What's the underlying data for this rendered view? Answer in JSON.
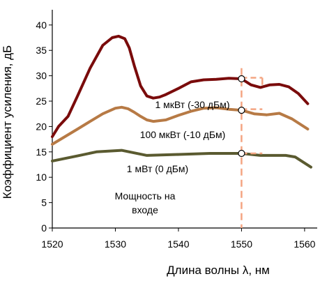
{
  "chart_data": {
    "type": "line",
    "xlabel": "Длина волны λ, нм",
    "ylabel": "Коэффициент усиления, дБ",
    "xlim": [
      1520,
      1562
    ],
    "ylim": [
      0,
      43
    ],
    "xticks": [
      1520,
      1530,
      1540,
      1550,
      1560
    ],
    "yticks": [
      0,
      5,
      10,
      15,
      20,
      25,
      30,
      35,
      40
    ],
    "grid": false,
    "series": [
      {
        "name": "1 мкВт (-30 дБм)",
        "color": "#7a0b0b",
        "x": [
          1520,
          1521,
          1522.5,
          1524,
          1526,
          1528,
          1529.5,
          1530.5,
          1531.5,
          1532.2,
          1533,
          1534,
          1535,
          1536,
          1537,
          1538,
          1540,
          1542,
          1544,
          1546,
          1548,
          1550,
          1551.5,
          1553,
          1554.5,
          1556,
          1557.5,
          1559,
          1560.5
        ],
        "y": [
          18,
          20,
          22,
          26,
          31.5,
          36,
          37.5,
          37.8,
          37.3,
          35.5,
          32,
          28,
          26,
          25.6,
          25.8,
          26.3,
          27.5,
          28.8,
          29.2,
          29.3,
          29.5,
          29.4,
          28.2,
          27.7,
          28.2,
          28.3,
          27.8,
          26.5,
          24.5
        ]
      },
      {
        "name": "100 мкВт (-10 дБм)",
        "color": "#b77a45",
        "x": [
          1520,
          1522,
          1524,
          1526,
          1528,
          1530,
          1531,
          1532,
          1533,
          1534,
          1535,
          1536,
          1538,
          1540,
          1542,
          1544,
          1546,
          1548,
          1550,
          1552,
          1554,
          1556,
          1558,
          1560.5
        ],
        "y": [
          16.5,
          18,
          19.5,
          21,
          22.5,
          23.6,
          23.8,
          23.5,
          22.8,
          22,
          21.3,
          21,
          21.3,
          22.2,
          23,
          23.6,
          23.7,
          23.4,
          23.2,
          22.5,
          22.3,
          22.6,
          21.5,
          19.5
        ]
      },
      {
        "name": "1 мВт (0 дБм)",
        "color": "#5a5a30",
        "x": [
          1520,
          1524,
          1527,
          1531,
          1535,
          1540,
          1545,
          1550,
          1553,
          1557,
          1558.5,
          1561
        ],
        "y": [
          13.2,
          14.2,
          15,
          15.3,
          14.3,
          14.5,
          14.7,
          14.7,
          14.3,
          14.3,
          14,
          12
        ]
      }
    ],
    "marker_x": 1550,
    "marker_points": [
      29.4,
      23.2,
      14.7
    ],
    "annotations": [
      "1 мкВт (-30 дБм)",
      "100 мкВт (-10 дБм)",
      "1 мВт (0 дБм)",
      "Мощность на",
      "входе"
    ]
  },
  "colors": {
    "axis": "#000000",
    "dashed": "#f4a582"
  }
}
